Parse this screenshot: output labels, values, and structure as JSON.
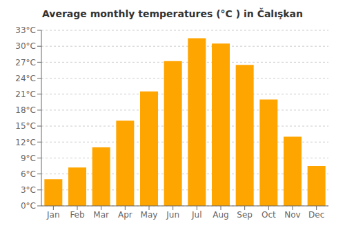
{
  "chart_data": {
    "type": "bar",
    "title": "Average monthly temperatures (°C ) in Čalışkan",
    "categories": [
      "Jan",
      "Feb",
      "Mar",
      "Apr",
      "May",
      "Jun",
      "Jul",
      "Aug",
      "Sep",
      "Oct",
      "Nov",
      "Dec"
    ],
    "values": [
      5.0,
      7.2,
      11.0,
      16.0,
      21.5,
      27.2,
      31.5,
      30.5,
      26.5,
      20.0,
      13.0,
      7.5
    ],
    "color": "#FFA500",
    "ylim": [
      0,
      33
    ],
    "yticks": [
      {
        "value": 0,
        "label": "0°C"
      },
      {
        "value": 3,
        "label": "3°C"
      },
      {
        "value": 6,
        "label": "6°C"
      },
      {
        "value": 9,
        "label": "9°C"
      },
      {
        "value": 12,
        "label": "12°C"
      },
      {
        "value": 15,
        "label": "15°C"
      },
      {
        "value": 18,
        "label": "18°C"
      },
      {
        "value": 21,
        "label": "21°C"
      },
      {
        "value": 24,
        "label": "24°C"
      },
      {
        "value": 27,
        "label": "27°C"
      },
      {
        "value": 30,
        "label": "30°C"
      },
      {
        "value": 33,
        "label": "33°C"
      }
    ],
    "grid": true
  }
}
